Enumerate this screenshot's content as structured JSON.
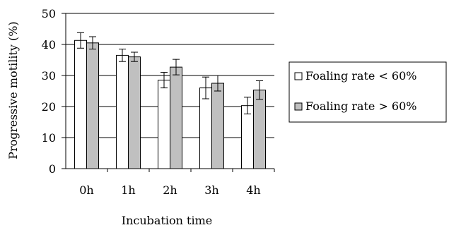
{
  "chart_data": {
    "type": "bar",
    "xlabel": "Incubation time",
    "ylabel": "Progressive motility (%)",
    "ylim": [
      0,
      50
    ],
    "yticks": [
      0,
      10,
      20,
      30,
      40,
      50
    ],
    "grid": true,
    "legend_placement": "right",
    "categories": [
      "0h",
      "1h",
      "2h",
      "3h",
      "4h"
    ],
    "series": [
      {
        "name": "Foaling rate < 60%",
        "color": "#ffffff",
        "values": [
          41.3,
          36.5,
          28.5,
          26.0,
          20.3
        ],
        "errors": [
          2.5,
          2.0,
          2.5,
          3.5,
          2.7
        ]
      },
      {
        "name": "Foaling rate > 60%",
        "color": "#c0c0c0",
        "values": [
          40.5,
          36.0,
          32.7,
          27.5,
          25.3
        ],
        "errors": [
          2.0,
          1.5,
          2.5,
          2.5,
          3.0
        ]
      }
    ]
  }
}
